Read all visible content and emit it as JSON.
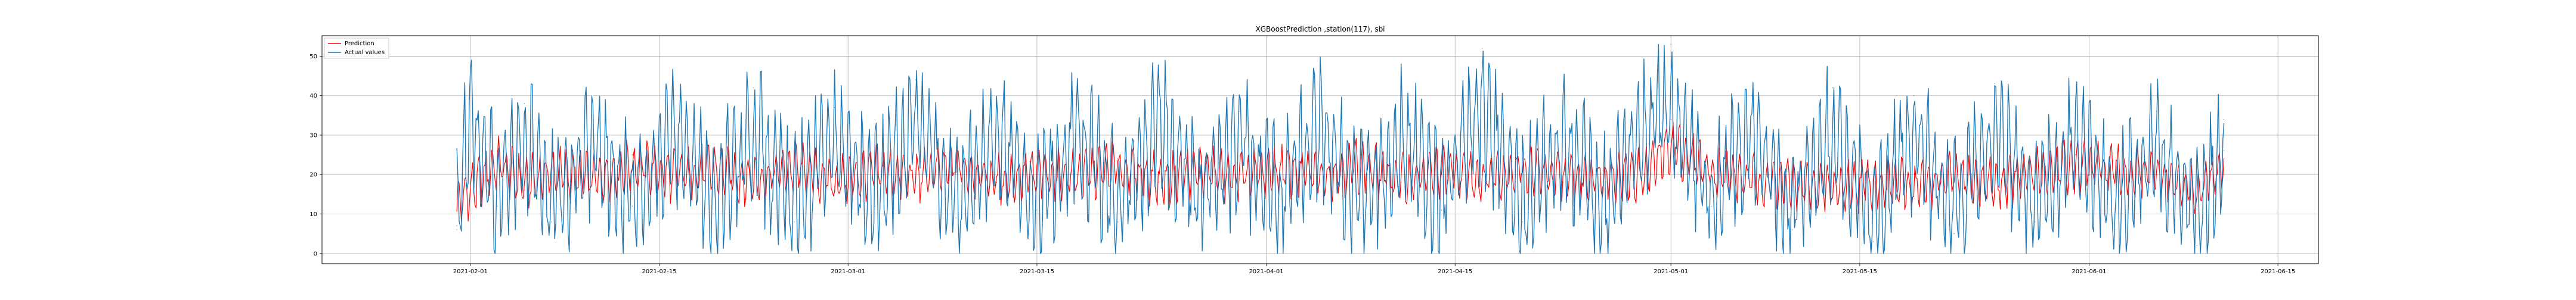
{
  "chart_data": {
    "type": "line",
    "title": "XGBoostPrediction ,station(117), sbi",
    "xlabel": "",
    "ylabel": "",
    "x_axis_type": "date",
    "xlim": [
      "2021-01-21",
      "2021-06-18"
    ],
    "ylim": [
      -2.6,
      55.2
    ],
    "x_ticks": [
      "2021-02-01",
      "2021-02-15",
      "2021-03-01",
      "2021-03-15",
      "2021-04-01",
      "2021-04-15",
      "2021-05-01",
      "2021-05-15",
      "2021-06-01",
      "2021-06-15"
    ],
    "y_ticks": [
      0,
      10,
      20,
      30,
      40,
      50
    ],
    "grid": true,
    "legend": {
      "placement": "top-left",
      "entries": [
        "Prediction",
        "Actual values"
      ]
    },
    "data_start": "2021-01-31",
    "data_end": "2021-06-11",
    "series": [
      {
        "name": "Prediction",
        "color": "#ff0000",
        "x": [
          "2021-01-31",
          "2021-02-03",
          "2021-02-05",
          "2021-02-07",
          "2021-02-10",
          "2021-02-13",
          "2021-02-16",
          "2021-02-19",
          "2021-02-22",
          "2021-02-25",
          "2021-02-28",
          "2021-03-03",
          "2021-03-06",
          "2021-03-09",
          "2021-03-12",
          "2021-03-15",
          "2021-03-18",
          "2021-03-21",
          "2021-03-24",
          "2021-03-27",
          "2021-03-30",
          "2021-04-02",
          "2021-04-05",
          "2021-04-08",
          "2021-04-11",
          "2021-04-14",
          "2021-04-17",
          "2021-04-20",
          "2021-04-23",
          "2021-04-26",
          "2021-04-29",
          "2021-05-01",
          "2021-05-04",
          "2021-05-07",
          "2021-05-10",
          "2021-05-13",
          "2021-05-16",
          "2021-05-19",
          "2021-05-22",
          "2021-05-25",
          "2021-05-28",
          "2021-05-31",
          "2021-06-03",
          "2021-06-06",
          "2021-06-09",
          "2021-06-11"
        ],
        "y": [
          7,
          26,
          16,
          22,
          18,
          25,
          20,
          23,
          18,
          24,
          17,
          22,
          19,
          25,
          18,
          21,
          20,
          24,
          18,
          22,
          19,
          23,
          20,
          25,
          18,
          22,
          19,
          24,
          18,
          21,
          20,
          34,
          22,
          18,
          16,
          14,
          17,
          15,
          19,
          16,
          21,
          25,
          22,
          20,
          12,
          26
        ]
      },
      {
        "name": "Actual values",
        "color": "#1f77b4",
        "x": [
          "2021-01-31",
          "2021-02-01",
          "2021-02-03",
          "2021-02-05",
          "2021-02-07",
          "2021-02-10",
          "2021-02-13",
          "2021-02-16",
          "2021-02-19",
          "2021-02-22",
          "2021-02-25",
          "2021-02-28",
          "2021-03-03",
          "2021-03-06",
          "2021-03-09",
          "2021-03-12",
          "2021-03-15",
          "2021-03-18",
          "2021-03-21",
          "2021-03-24",
          "2021-03-27",
          "2021-03-30",
          "2021-04-02",
          "2021-04-05",
          "2021-04-08",
          "2021-04-11",
          "2021-04-14",
          "2021-04-17",
          "2021-04-20",
          "2021-04-23",
          "2021-04-26",
          "2021-04-29",
          "2021-05-01",
          "2021-05-04",
          "2021-05-07",
          "2021-05-10",
          "2021-05-13",
          "2021-05-16",
          "2021-05-19",
          "2021-05-22",
          "2021-05-25",
          "2021-05-28",
          "2021-05-31",
          "2021-06-03",
          "2021-06-06",
          "2021-06-09",
          "2021-06-11"
        ],
        "y": [
          6,
          46,
          12,
          38,
          8,
          35,
          12,
          40,
          10,
          42,
          8,
          37,
          12,
          44,
          9,
          38,
          11,
          41,
          8,
          47,
          10,
          36,
          12,
          44,
          9,
          40,
          11,
          52,
          8,
          38,
          10,
          42,
          53,
          12,
          40,
          6,
          42,
          3,
          40,
          5,
          43,
          8,
          38,
          6,
          36,
          2,
          34
        ]
      }
    ]
  }
}
